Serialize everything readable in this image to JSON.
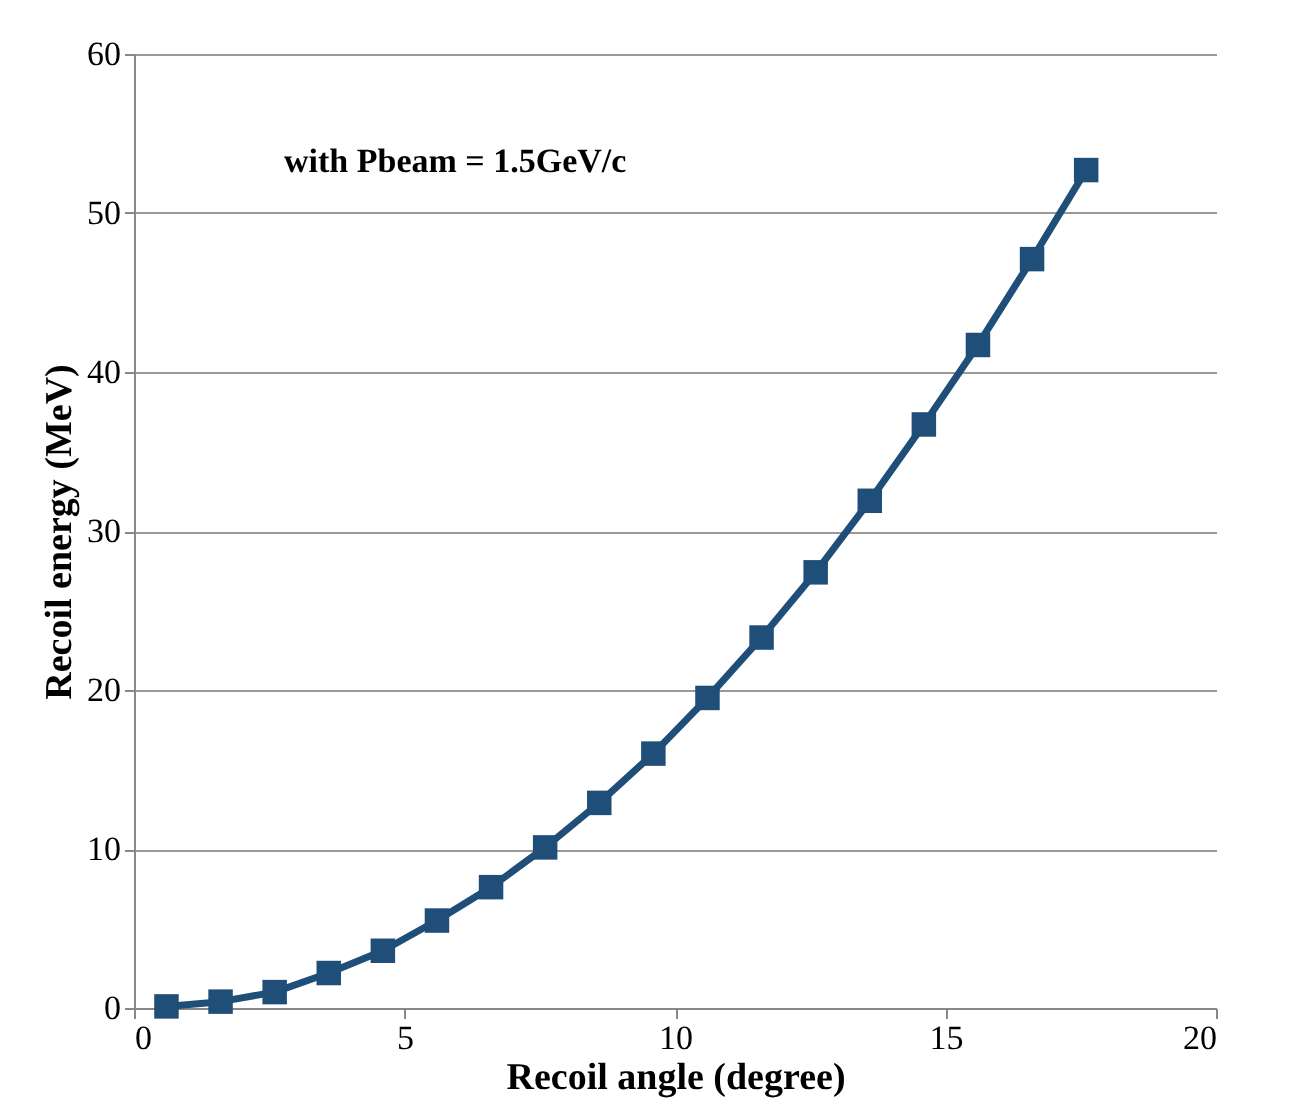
{
  "chart_data": {
    "type": "line",
    "xlabel": "Recoil angle (degree)",
    "ylabel": "Recoil energy (MeV)",
    "annotations": [
      "with Pbeam = 1.5GeV/c"
    ],
    "x": [
      0.6,
      1.6,
      2.6,
      3.6,
      4.6,
      5.6,
      6.6,
      7.6,
      8.6,
      9.6,
      10.6,
      11.6,
      12.6,
      13.6,
      14.6,
      15.6,
      16.6,
      17.6
    ],
    "series": [
      {
        "color": "#1f4e79",
        "values": [
          0.1,
          0.4,
          1.0,
          2.2,
          3.6,
          5.5,
          7.6,
          10.1,
          12.9,
          16.0,
          19.5,
          23.3,
          27.4,
          31.9,
          36.7,
          41.7,
          47.1,
          52.7
        ]
      }
    ],
    "xlim": [
      0,
      20
    ],
    "xticks": [
      0,
      5,
      10,
      15,
      20
    ],
    "ylim": [
      0,
      60
    ],
    "yticks": [
      0,
      10,
      20,
      30,
      40,
      50,
      60
    ],
    "grid": "y",
    "marker": "square",
    "line_style": "solid"
  }
}
